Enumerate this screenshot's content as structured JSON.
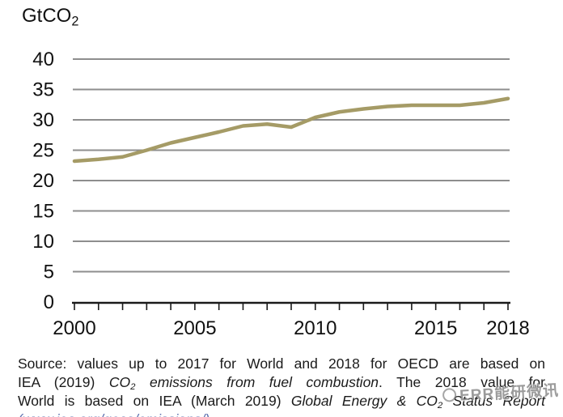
{
  "header": {
    "unit_main": "GtCO",
    "unit_sub": "2"
  },
  "chart_data": {
    "type": "line",
    "title": "",
    "ylabel": "GtCO2",
    "xlabel": "",
    "x": [
      2000,
      2001,
      2002,
      2003,
      2004,
      2005,
      2006,
      2007,
      2008,
      2009,
      2010,
      2011,
      2012,
      2013,
      2014,
      2015,
      2016,
      2017,
      2018
    ],
    "values": [
      23.2,
      23.5,
      23.9,
      25.0,
      26.2,
      27.1,
      28.0,
      29.0,
      29.3,
      28.8,
      30.4,
      31.3,
      31.8,
      32.2,
      32.4,
      32.4,
      32.4,
      32.8,
      33.5
    ],
    "xticks": [
      2000,
      2005,
      2010,
      2015,
      2018
    ],
    "yticks": [
      0,
      5,
      10,
      15,
      20,
      25,
      30,
      35,
      40
    ],
    "xlim": [
      2000,
      2018
    ],
    "ylim": [
      0,
      40
    ],
    "grid": true,
    "legend": "none",
    "line_color": "#a59b66",
    "grid_color": "#8e8e8e",
    "axis_color": "#1a1a1a"
  },
  "source": {
    "lines": [
      {
        "justify": true,
        "clipped": false,
        "segments": [
          {
            "text": "Source: values up to 2017 for World and 2018 for OECD are based on",
            "italic": false,
            "subscript": false
          }
        ]
      },
      {
        "justify": true,
        "clipped": false,
        "segments": [
          {
            "text": "IEA (2019) ",
            "italic": false,
            "subscript": false
          },
          {
            "text": "CO",
            "italic": true,
            "subscript": false
          },
          {
            "text": "2",
            "italic": true,
            "subscript": true
          },
          {
            "text": " emissions from fuel combustion",
            "italic": true,
            "subscript": false
          },
          {
            "text": ". The 2018 value for",
            "italic": false,
            "subscript": false
          }
        ]
      },
      {
        "justify": true,
        "clipped": false,
        "segments": [
          {
            "text": "World is based on IEA (March 2019) ",
            "italic": false,
            "subscript": false
          },
          {
            "text": "Global Energy & CO",
            "italic": true,
            "subscript": false
          },
          {
            "text": "2",
            "italic": true,
            "subscript": true
          },
          {
            "text": " Status Report",
            "italic": true,
            "subscript": false
          }
        ]
      },
      {
        "justify": false,
        "clipped": true,
        "color": "#5b6fae",
        "segments": [
          {
            "text": "(www.iea.org/geco/emissions/)",
            "italic": true,
            "subscript": false
          }
        ]
      }
    ]
  },
  "watermark": {
    "text": "ERR能研微讯"
  }
}
